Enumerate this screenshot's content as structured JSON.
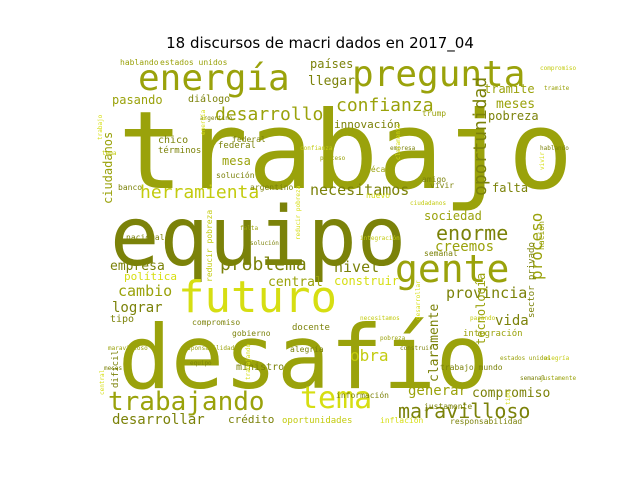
{
  "title": "18 discursos de macri dados en 2017_04",
  "palette": {
    "yellow": "#d6de12",
    "lime": "#c3cb0e",
    "olive": "#9aa20b",
    "dark_olive": "#7b8209",
    "darker": "#6f7508"
  },
  "words": [
    "trabajo",
    "equipo",
    "desafío",
    "futuro",
    "energía",
    "pregunta",
    "gente",
    "tema",
    "trabajando",
    "herramienta",
    "desarrollo",
    "confianza",
    "oportunidad",
    "problema",
    "maravilloso",
    "necesitamos",
    "enorme",
    "provincia",
    "proceso",
    "creemos",
    "innovación",
    "meses",
    "pobreza",
    "cambio",
    "lograr",
    "empresa",
    "política",
    "nivel",
    "central",
    "construir",
    "vida",
    "obra",
    "claramente",
    "tecnología",
    "generar",
    "compromiso",
    "desarrollar",
    "crédito",
    "oportunidades",
    "ciudadanos",
    "países",
    "llegar",
    "tramite",
    "pasando",
    "diálogo",
    "mesa",
    "falta",
    "sociedad",
    "federal",
    "hablando",
    "estados unidos",
    "chico",
    "términos",
    "solución",
    "década",
    "amigo",
    "vivir",
    "semanal",
    "nacional",
    "banco",
    "reducir pobreza",
    "docente",
    "compromiso",
    "alegría",
    "tipo",
    "difícil",
    "gobierno",
    "integración",
    "sector privado",
    "nación",
    "justamente",
    "ministro",
    "información",
    "inflación",
    "responsabilidad",
    "federal",
    "trump",
    "argentino",
    "nuevo",
    "trabajo mundo"
  ]
}
